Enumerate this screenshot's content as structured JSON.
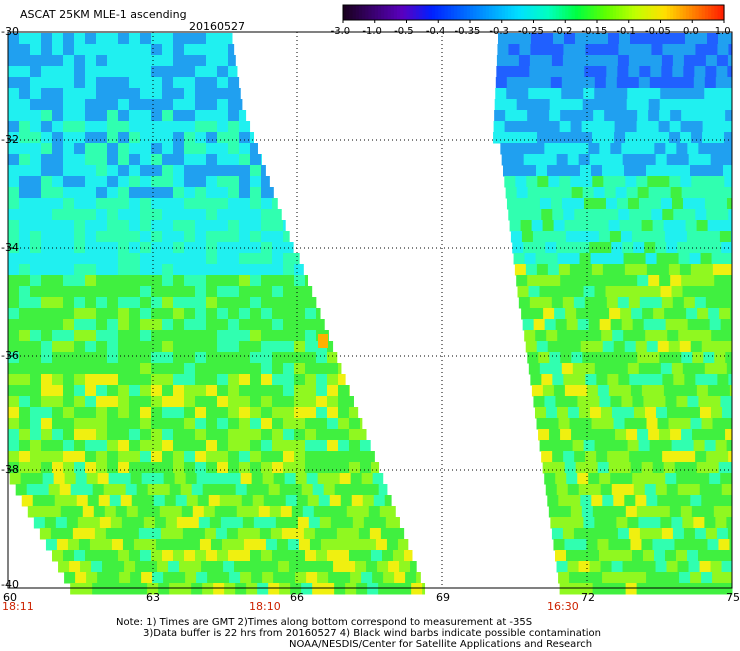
{
  "header": {
    "title": "ASCAT 25KM MLE-1 ascending",
    "date": "20160527"
  },
  "colorbar": {
    "tick_labels": [
      "-3.0",
      "-1.0",
      "-0.5",
      "-0.4",
      "-0.35",
      "-0.3",
      "-0.25",
      "-0.2",
      "-0.15",
      "-0.1",
      "-0.05",
      "0.0",
      "1.0"
    ],
    "colors": [
      "#1a0020",
      "#3a0070",
      "#5a00c0",
      "#0020ff",
      "#0060ff",
      "#00a0ff",
      "#00e0ff",
      "#00ffc0",
      "#00ff40",
      "#60ff00",
      "#c0ff00",
      "#ffe000",
      "#ff8000",
      "#ff2000"
    ]
  },
  "axes": {
    "lat_labels": [
      "-30",
      "-32",
      "-34",
      "-36",
      "-38",
      "-40"
    ],
    "lon_labels": [
      "60",
      "63",
      "66",
      "69",
      "72",
      "75"
    ]
  },
  "pass_times": [
    "18:11",
    "18:10",
    "16:30"
  ],
  "footer": {
    "note_line1": "Note: 1) Times are GMT 2)Times along bottom correspond to measurement at -35S",
    "note_line2": "3)Data buffer is 22 hrs from 20160527 4) Black wind barbs indicate possible contamination",
    "credit": "NOAA/NESDIS/Center for Satellite Applications and Research"
  },
  "swath_colors": {
    "deep_blue": "#2060ff",
    "blue": "#20a0f0",
    "cyan": "#20f0f0",
    "aqua_green": "#30ffb0",
    "green": "#40f040",
    "light_green": "#90f820",
    "yellow": "#f0f010",
    "orange": "#ffb000"
  }
}
